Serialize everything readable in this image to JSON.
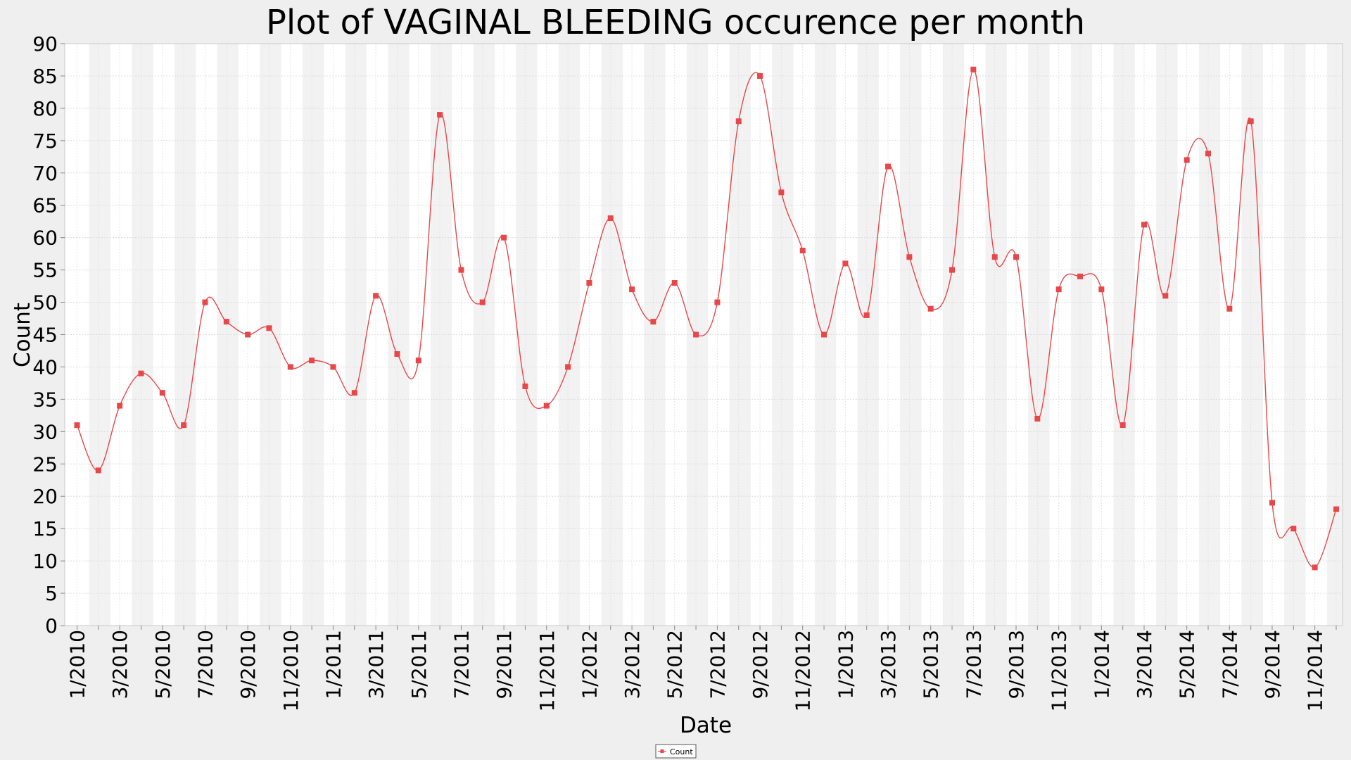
{
  "chart_data": {
    "type": "line",
    "title": "Plot of VAGINAL BLEEDING occurence per month",
    "xlabel": "Date",
    "ylabel": "Count",
    "ylim": [
      0,
      90
    ],
    "y_ticks": [
      0,
      5,
      10,
      15,
      20,
      25,
      30,
      35,
      40,
      45,
      50,
      55,
      60,
      65,
      70,
      75,
      80,
      85,
      90
    ],
    "x_tick_labels": [
      "1/2010",
      "3/2010",
      "5/2010",
      "7/2010",
      "9/2010",
      "11/2010",
      "1/2011",
      "3/2011",
      "5/2011",
      "7/2011",
      "9/2011",
      "11/2011",
      "1/2012",
      "3/2012",
      "5/2012",
      "7/2012",
      "9/2012",
      "11/2012",
      "1/2013",
      "3/2013",
      "5/2013",
      "7/2013",
      "9/2013",
      "11/2013",
      "1/2014",
      "3/2014",
      "5/2014",
      "7/2014",
      "9/2014",
      "11/2014"
    ],
    "grid": true,
    "legend_position": "bottom-center",
    "series": [
      {
        "name": "Count",
        "color": "#e8474a",
        "x": [
          "1/2010",
          "2/2010",
          "3/2010",
          "4/2010",
          "5/2010",
          "6/2010",
          "7/2010",
          "8/2010",
          "9/2010",
          "10/2010",
          "11/2010",
          "12/2010",
          "1/2011",
          "2/2011",
          "3/2011",
          "4/2011",
          "5/2011",
          "6/2011",
          "7/2011",
          "8/2011",
          "9/2011",
          "10/2011",
          "11/2011",
          "12/2011",
          "1/2012",
          "2/2012",
          "3/2012",
          "4/2012",
          "5/2012",
          "6/2012",
          "7/2012",
          "8/2012",
          "9/2012",
          "10/2012",
          "11/2012",
          "12/2012",
          "1/2013",
          "2/2013",
          "3/2013",
          "4/2013",
          "5/2013",
          "6/2013",
          "7/2013",
          "8/2013",
          "9/2013",
          "10/2013",
          "11/2013",
          "12/2013",
          "1/2014",
          "2/2014",
          "3/2014",
          "4/2014",
          "5/2014",
          "6/2014",
          "7/2014",
          "8/2014",
          "9/2014",
          "10/2014",
          "11/2014",
          "12/2014"
        ],
        "values": [
          31,
          24,
          34,
          39,
          36,
          31,
          50,
          47,
          45,
          46,
          40,
          41,
          40,
          36,
          51,
          42,
          41,
          79,
          55,
          50,
          60,
          37,
          34,
          40,
          53,
          63,
          52,
          47,
          53,
          45,
          50,
          78,
          85,
          67,
          58,
          45,
          56,
          48,
          71,
          57,
          49,
          55,
          86,
          57,
          57,
          32,
          52,
          54,
          52,
          31,
          62,
          51,
          72,
          73,
          49,
          78,
          19,
          15,
          9,
          18
        ]
      }
    ]
  }
}
